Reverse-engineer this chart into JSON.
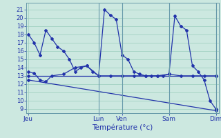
{
  "xlabel": "Température (°c)",
  "bg_color": "#cce8e0",
  "line_color": "#2233aa",
  "grid_color": "#99ccbb",
  "text_color": "#2233aa",
  "spine_color": "#6699aa",
  "ylim_min": 8.5,
  "ylim_max": 21.8,
  "xlim_min": -0.3,
  "xlim_max": 32.5,
  "yticks": [
    9,
    10,
    11,
    12,
    13,
    14,
    15,
    16,
    17,
    18,
    19,
    20,
    21
  ],
  "xtick_pos": [
    0,
    12,
    16,
    24,
    32
  ],
  "xtick_labels": [
    "Jeu",
    "Lun",
    "Ven",
    "Sam",
    "Dim"
  ],
  "vlines": [
    12,
    16,
    24,
    32
  ],
  "line1_x": [
    0,
    1,
    2,
    3,
    4,
    5,
    6,
    7,
    8,
    9,
    10,
    11,
    12,
    13,
    14,
    15,
    16,
    17,
    18,
    19,
    20,
    21,
    22,
    23,
    24,
    25,
    26,
    27,
    28,
    29,
    30,
    31,
    32
  ],
  "line1_y": [
    18,
    17,
    15.5,
    18.5,
    17.5,
    16.5,
    16,
    15,
    13.5,
    14,
    14.2,
    13.5,
    13,
    21,
    20.3,
    19.8,
    15.5,
    15,
    13.5,
    13.2,
    13,
    13,
    13,
    13,
    13.2,
    20.2,
    19,
    18.5,
    14.2,
    13.5,
    12.5,
    10,
    9
  ],
  "line2_x": [
    0,
    1,
    2,
    3,
    4,
    6,
    8,
    10,
    12,
    14,
    16,
    18,
    20,
    22,
    24,
    26,
    28,
    30,
    32
  ],
  "line2_y": [
    13.5,
    13.3,
    12.5,
    12.3,
    13.0,
    13.2,
    14.0,
    14.2,
    13.0,
    13.0,
    13.0,
    13.0,
    13.0,
    13.0,
    13.2,
    13.0,
    13.0,
    13.0,
    13.0
  ],
  "line3_x": [
    0,
    32
  ],
  "line3_y": [
    12.5,
    8.8
  ],
  "line4_x": [
    0,
    32
  ],
  "line4_y": [
    13.0,
    13.0
  ]
}
